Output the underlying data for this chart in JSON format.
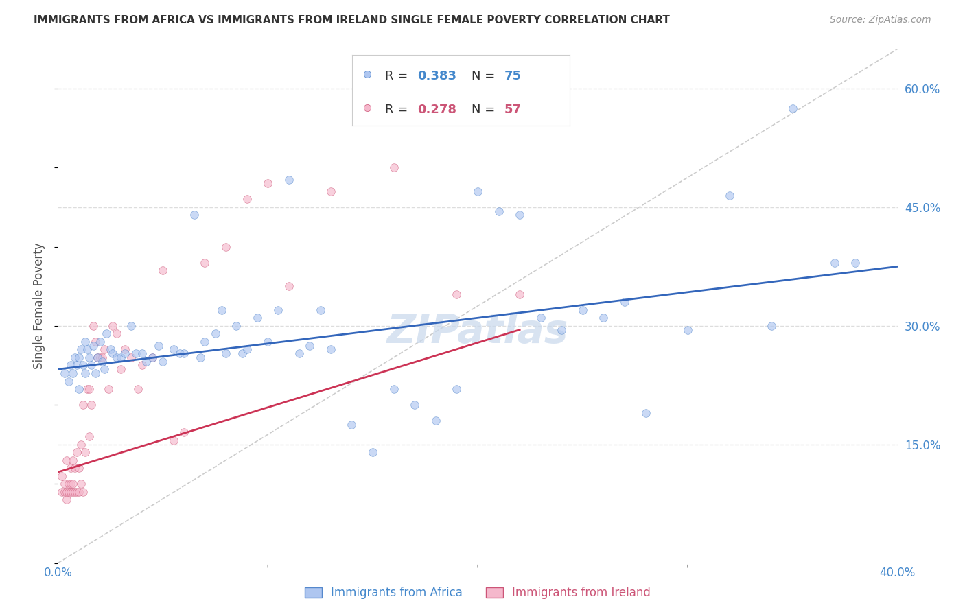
{
  "title": "IMMIGRANTS FROM AFRICA VS IMMIGRANTS FROM IRELAND SINGLE FEMALE POVERTY CORRELATION CHART",
  "source": "Source: ZipAtlas.com",
  "ylabel": "Single Female Poverty",
  "right_yticks": [
    "60.0%",
    "45.0%",
    "30.0%",
    "15.0%"
  ],
  "right_ytick_vals": [
    0.6,
    0.45,
    0.3,
    0.15
  ],
  "xtick_labels": [
    "0.0%",
    "40.0%"
  ],
  "xtick_vals": [
    0.0,
    0.4
  ],
  "xlim": [
    0.0,
    0.4
  ],
  "ylim": [
    0.0,
    0.65
  ],
  "legend_africa_R": "0.383",
  "legend_africa_N": "75",
  "legend_ireland_R": "0.278",
  "legend_ireland_N": "57",
  "africa_color": "#aec6f0",
  "africa_edge_color": "#5588cc",
  "ireland_color": "#f5b8cc",
  "ireland_edge_color": "#cc5577",
  "trendline_africa_color": "#3366bb",
  "trendline_ireland_color": "#cc3355",
  "trendline_diag_color": "#cccccc",
  "background_color": "#ffffff",
  "grid_color": "#dddddd",
  "title_color": "#333333",
  "axis_label_color": "#4488cc",
  "watermark": "ZIPatlas",
  "watermark_color": "#c8d8ec",
  "africa_x": [
    0.003,
    0.005,
    0.006,
    0.007,
    0.008,
    0.009,
    0.01,
    0.01,
    0.011,
    0.012,
    0.013,
    0.013,
    0.014,
    0.015,
    0.016,
    0.017,
    0.018,
    0.019,
    0.02,
    0.021,
    0.022,
    0.023,
    0.025,
    0.026,
    0.028,
    0.03,
    0.032,
    0.035,
    0.037,
    0.04,
    0.042,
    0.045,
    0.048,
    0.05,
    0.055,
    0.058,
    0.06,
    0.065,
    0.068,
    0.07,
    0.075,
    0.078,
    0.08,
    0.085,
    0.088,
    0.09,
    0.095,
    0.1,
    0.105,
    0.11,
    0.115,
    0.12,
    0.125,
    0.13,
    0.14,
    0.15,
    0.16,
    0.17,
    0.18,
    0.19,
    0.2,
    0.21,
    0.22,
    0.23,
    0.24,
    0.25,
    0.26,
    0.27,
    0.28,
    0.3,
    0.32,
    0.34,
    0.35,
    0.37,
    0.38
  ],
  "africa_y": [
    0.24,
    0.23,
    0.25,
    0.24,
    0.26,
    0.25,
    0.22,
    0.26,
    0.27,
    0.25,
    0.24,
    0.28,
    0.27,
    0.26,
    0.25,
    0.275,
    0.24,
    0.26,
    0.28,
    0.255,
    0.245,
    0.29,
    0.27,
    0.265,
    0.26,
    0.26,
    0.265,
    0.3,
    0.265,
    0.265,
    0.255,
    0.26,
    0.275,
    0.255,
    0.27,
    0.265,
    0.265,
    0.44,
    0.26,
    0.28,
    0.29,
    0.32,
    0.265,
    0.3,
    0.265,
    0.27,
    0.31,
    0.28,
    0.32,
    0.485,
    0.265,
    0.275,
    0.32,
    0.27,
    0.175,
    0.14,
    0.22,
    0.2,
    0.18,
    0.22,
    0.47,
    0.445,
    0.44,
    0.31,
    0.295,
    0.32,
    0.31,
    0.33,
    0.19,
    0.295,
    0.465,
    0.3,
    0.575,
    0.38,
    0.38
  ],
  "ireland_x": [
    0.002,
    0.002,
    0.003,
    0.003,
    0.004,
    0.004,
    0.004,
    0.005,
    0.005,
    0.006,
    0.006,
    0.006,
    0.007,
    0.007,
    0.007,
    0.008,
    0.008,
    0.009,
    0.009,
    0.01,
    0.01,
    0.011,
    0.011,
    0.012,
    0.012,
    0.013,
    0.014,
    0.015,
    0.015,
    0.016,
    0.017,
    0.018,
    0.019,
    0.02,
    0.021,
    0.022,
    0.024,
    0.026,
    0.028,
    0.03,
    0.032,
    0.035,
    0.038,
    0.04,
    0.045,
    0.05,
    0.055,
    0.06,
    0.07,
    0.08,
    0.09,
    0.1,
    0.11,
    0.13,
    0.16,
    0.19,
    0.22
  ],
  "ireland_y": [
    0.09,
    0.11,
    0.09,
    0.1,
    0.08,
    0.09,
    0.13,
    0.09,
    0.1,
    0.09,
    0.1,
    0.12,
    0.09,
    0.1,
    0.13,
    0.09,
    0.12,
    0.09,
    0.14,
    0.09,
    0.12,
    0.1,
    0.15,
    0.09,
    0.2,
    0.14,
    0.22,
    0.22,
    0.16,
    0.2,
    0.3,
    0.28,
    0.26,
    0.26,
    0.26,
    0.27,
    0.22,
    0.3,
    0.29,
    0.245,
    0.27,
    0.26,
    0.22,
    0.25,
    0.26,
    0.37,
    0.155,
    0.165,
    0.38,
    0.4,
    0.46,
    0.48,
    0.35,
    0.47,
    0.5,
    0.34,
    0.34
  ],
  "trendline_africa_x0": 0.0,
  "trendline_africa_x1": 0.4,
  "trendline_africa_y0": 0.245,
  "trendline_africa_y1": 0.375,
  "trendline_ireland_x0": 0.0,
  "trendline_ireland_x1": 0.22,
  "trendline_ireland_y0": 0.115,
  "trendline_ireland_y1": 0.295,
  "marker_size": 70,
  "marker_alpha": 0.65
}
